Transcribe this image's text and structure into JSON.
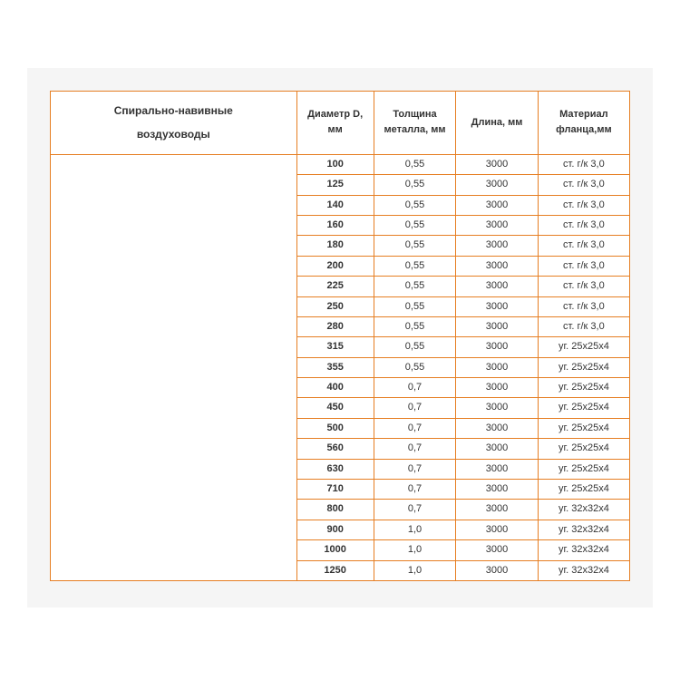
{
  "panel_bg": "#f5f5f5",
  "border_color": "#e67e22",
  "text_color": "#333333",
  "font_size_header": 11,
  "font_size_cell": 11,
  "table": {
    "title_line1": "Спирально-навивные",
    "title_line2": "воздуховоды",
    "columns": [
      "Диаметр D, мм",
      "Толщина металла, мм",
      "Длина, мм",
      "Материал фланца,мм"
    ],
    "rows": [
      [
        "100",
        "0,55",
        "3000",
        "ст. г/к 3,0"
      ],
      [
        "125",
        "0,55",
        "3000",
        "ст. г/к 3,0"
      ],
      [
        "140",
        "0,55",
        "3000",
        "ст. г/к 3,0"
      ],
      [
        "160",
        "0,55",
        "3000",
        "ст. г/к 3,0"
      ],
      [
        "180",
        "0,55",
        "3000",
        "ст. г/к 3,0"
      ],
      [
        "200",
        "0,55",
        "3000",
        "ст. г/к 3,0"
      ],
      [
        "225",
        "0,55",
        "3000",
        "ст. г/к 3,0"
      ],
      [
        "250",
        "0,55",
        "3000",
        "ст. г/к 3,0"
      ],
      [
        "280",
        "0,55",
        "3000",
        "ст. г/к 3,0"
      ],
      [
        "315",
        "0,55",
        "3000",
        "уг. 25х25х4"
      ],
      [
        "355",
        "0,55",
        "3000",
        "уг. 25х25х4"
      ],
      [
        "400",
        "0,7",
        "3000",
        "уг. 25х25х4"
      ],
      [
        "450",
        "0,7",
        "3000",
        "уг. 25х25х4"
      ],
      [
        "500",
        "0,7",
        "3000",
        "уг. 25х25х4"
      ],
      [
        "560",
        "0,7",
        "3000",
        "уг. 25х25х4"
      ],
      [
        "630",
        "0,7",
        "3000",
        "уг. 25х25х4"
      ],
      [
        "710",
        "0,7",
        "3000",
        "уг. 25х25х4"
      ],
      [
        "800",
        "0,7",
        "3000",
        "уг. 32х32х4"
      ],
      [
        "900",
        "1,0",
        "3000",
        "уг. 32х32х4"
      ],
      [
        "1000",
        "1,0",
        "3000",
        "уг. 32х32х4"
      ],
      [
        "1250",
        "1,0",
        "3000",
        "уг. 32х32х4"
      ]
    ]
  }
}
